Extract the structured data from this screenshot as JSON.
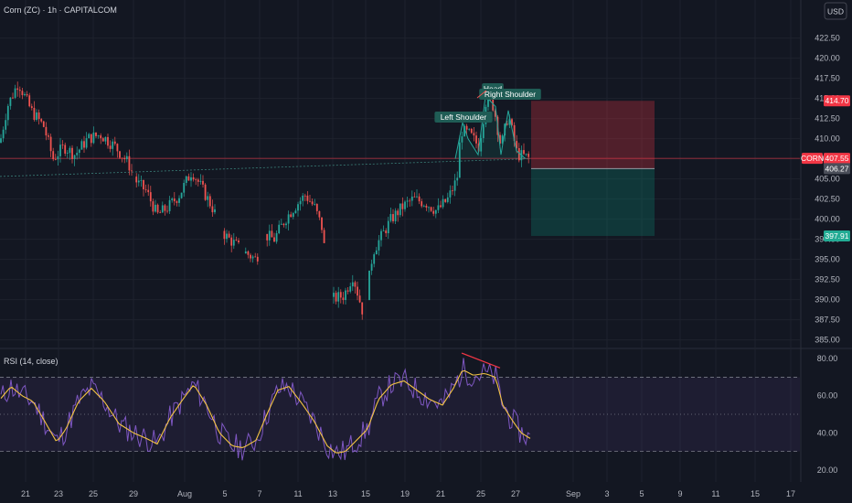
{
  "header": {
    "title": "Corn (ZC) · 1h · CAPITALCOM",
    "currency_button": "USD"
  },
  "colors": {
    "background": "#131722",
    "up": "#26a69a",
    "down": "#ef5350",
    "rsi_line": "#7e57c2",
    "rsi_ma": "#f5c542",
    "stop_zone": "#f23645",
    "target_zone": "#089981",
    "symbol_tag": "#f23645",
    "entry_tag": "#4a4e59",
    "target_tag": "#22ab94"
  },
  "chart_data": [
    {
      "type": "candlestick",
      "symbol": "CORN",
      "title": "Corn (ZC) · 1h · CAPITALCOM",
      "ylim": [
        384.5,
        424.5
      ],
      "y_ticks": [
        385.0,
        387.5,
        390.0,
        392.5,
        395.0,
        397.5,
        400.0,
        402.5,
        405.0,
        407.5,
        410.0,
        412.5,
        415.0,
        417.5,
        420.0,
        422.5
      ],
      "x_ticks": [
        "21",
        "23",
        "25",
        "29",
        "Aug",
        "5",
        "7",
        "11",
        "13",
        "15",
        "19",
        "21",
        "25",
        "27",
        "Sep",
        "3",
        "5",
        "9",
        "11",
        "15",
        "17"
      ],
      "price_path": [
        [
          0,
          409.5
        ],
        [
          8,
          414
        ],
        [
          20,
          417
        ],
        [
          34,
          413.5
        ],
        [
          48,
          411.5
        ],
        [
          58,
          407.5
        ],
        [
          70,
          409
        ],
        [
          82,
          408
        ],
        [
          96,
          410
        ],
        [
          110,
          410.5
        ],
        [
          126,
          409
        ],
        [
          140,
          407
        ],
        [
          150,
          404.5
        ],
        [
          160,
          403.5
        ],
        [
          172,
          400.5
        ],
        [
          184,
          401.5
        ],
        [
          196,
          403
        ],
        [
          210,
          406
        ],
        [
          220,
          404
        ],
        [
          232,
          401.5
        ],
        [
          246,
          398
        ],
        [
          256,
          397
        ],
        [
          266,
          396
        ],
        [
          280,
          395
        ],
        [
          290,
          398
        ],
        [
          300,
          397.5
        ],
        [
          312,
          400
        ],
        [
          322,
          401.5
        ],
        [
          334,
          403
        ],
        [
          344,
          401.5
        ],
        [
          352,
          399
        ],
        [
          362,
          390
        ],
        [
          376,
          390.5
        ],
        [
          386,
          393
        ],
        [
          398,
          388
        ],
        [
          408,
          396
        ],
        [
          418,
          398
        ],
        [
          428,
          400
        ],
        [
          440,
          401.5
        ],
        [
          452,
          402.5
        ],
        [
          466,
          402
        ],
        [
          478,
          401
        ],
        [
          490,
          402.5
        ],
        [
          500,
          405
        ],
        [
          504,
          411
        ],
        [
          514,
          410.5
        ],
        [
          524,
          409
        ],
        [
          532,
          415
        ],
        [
          540,
          414
        ],
        [
          548,
          409
        ],
        [
          556,
          413
        ],
        [
          566,
          408
        ],
        [
          574,
          407.8
        ],
        [
          580,
          407.5
        ]
      ],
      "annotations": {
        "left_shoulder": "Left Shoulder",
        "head": "Head",
        "right_shoulder": "Right Shoulder"
      },
      "position": {
        "stop": 414.7,
        "entry": 406.27,
        "target": 397.91,
        "last_price": 407.55
      },
      "price_tags": {
        "symbol": "CORN",
        "last": "407.55",
        "stop": "414.70",
        "entry": "406.27",
        "target": "397.91"
      }
    },
    {
      "type": "line",
      "title": "RSI (14, close)",
      "ylim": [
        17,
        84
      ],
      "y_ticks": [
        20.0,
        40.0,
        60.0,
        80.0
      ],
      "band": [
        30,
        70
      ],
      "midline": 50,
      "rsi_path": [
        [
          0,
          58
        ],
        [
          12,
          65
        ],
        [
          24,
          60
        ],
        [
          36,
          57
        ],
        [
          48,
          47
        ],
        [
          62,
          35
        ],
        [
          72,
          42
        ],
        [
          86,
          57
        ],
        [
          100,
          64
        ],
        [
          114,
          57
        ],
        [
          130,
          45
        ],
        [
          146,
          40
        ],
        [
          160,
          37
        ],
        [
          172,
          34
        ],
        [
          186,
          48
        ],
        [
          200,
          58
        ],
        [
          212,
          66
        ],
        [
          226,
          55
        ],
        [
          240,
          40
        ],
        [
          254,
          33
        ],
        [
          266,
          32
        ],
        [
          280,
          36
        ],
        [
          292,
          50
        ],
        [
          304,
          63
        ],
        [
          316,
          65
        ],
        [
          330,
          56
        ],
        [
          344,
          46
        ],
        [
          358,
          33
        ],
        [
          368,
          29
        ],
        [
          378,
          30
        ],
        [
          390,
          36
        ],
        [
          402,
          42
        ],
        [
          414,
          58
        ],
        [
          428,
          66
        ],
        [
          442,
          68
        ],
        [
          456,
          63
        ],
        [
          470,
          58
        ],
        [
          484,
          55
        ],
        [
          496,
          64
        ],
        [
          506,
          74
        ],
        [
          518,
          71
        ],
        [
          530,
          72
        ],
        [
          542,
          70
        ],
        [
          550,
          55
        ],
        [
          560,
          47
        ],
        [
          570,
          40
        ],
        [
          580,
          37
        ]
      ],
      "divergence": [
        [
          505,
          83
        ],
        [
          547,
          75
        ]
      ]
    }
  ]
}
